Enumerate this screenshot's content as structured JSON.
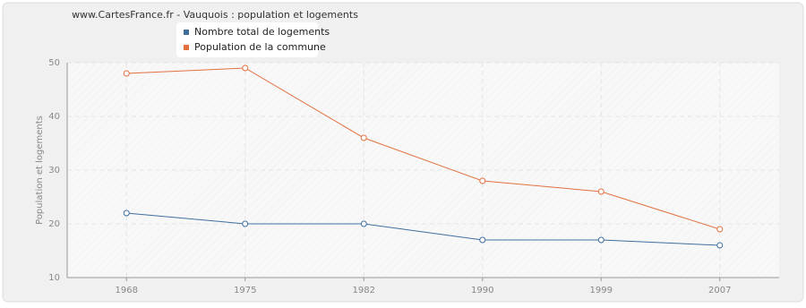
{
  "chart_data": {
    "type": "line",
    "title": "www.CartesFrance.fr - Vauquois : population et logements",
    "y_label": "Population et logements",
    "categories": [
      "1968",
      "1975",
      "1982",
      "1990",
      "1999",
      "2007"
    ],
    "series": [
      {
        "name": "Nombre total de logements",
        "color": "#3f6f9f",
        "values": [
          22,
          20,
          20,
          17,
          17,
          16
        ]
      },
      {
        "name": "Population de la commune",
        "color": "#e2703f",
        "values": [
          48,
          49,
          36,
          28,
          26,
          19
        ]
      }
    ],
    "ylim": [
      10,
      50
    ],
    "yticks": [
      10,
      20,
      30,
      40,
      50
    ],
    "grid": true
  }
}
